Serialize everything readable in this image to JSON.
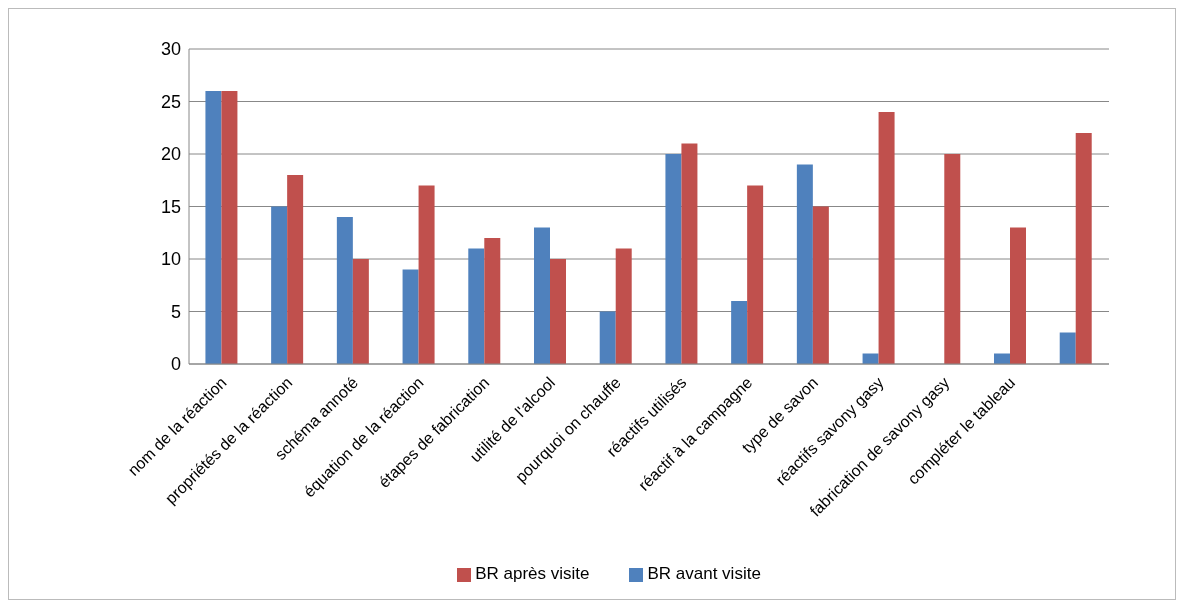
{
  "chart_data": {
    "type": "bar",
    "categories": [
      "nom de la réaction",
      "propriétés de la réaction",
      "schéma annoté",
      "équation de la réaction",
      "étapes de fabrication",
      "utilité de l'alcool",
      "pourquoi on chauffe",
      "réactifs utilisés",
      "réactif à la campagne",
      "type de savon",
      "réactifs savony gasy",
      "fabrication de savony gasy",
      "compléter le tableau",
      null
    ],
    "series": [
      {
        "name": "BR avant visite",
        "color": "#4f81bd",
        "values": [
          26,
          15,
          14,
          9,
          11,
          13,
          5,
          20,
          6,
          19,
          1,
          0,
          1,
          3
        ]
      },
      {
        "name": "BR après visite",
        "color": "#c0504d",
        "values": [
          26,
          18,
          10,
          17,
          12,
          10,
          11,
          21,
          17,
          15,
          24,
          20,
          13,
          22
        ]
      }
    ],
    "ylim": [
      0,
      30
    ],
    "yticks": [
      0,
      5,
      10,
      15,
      20,
      25,
      30
    ],
    "grid": "y",
    "legend": "bottom"
  }
}
